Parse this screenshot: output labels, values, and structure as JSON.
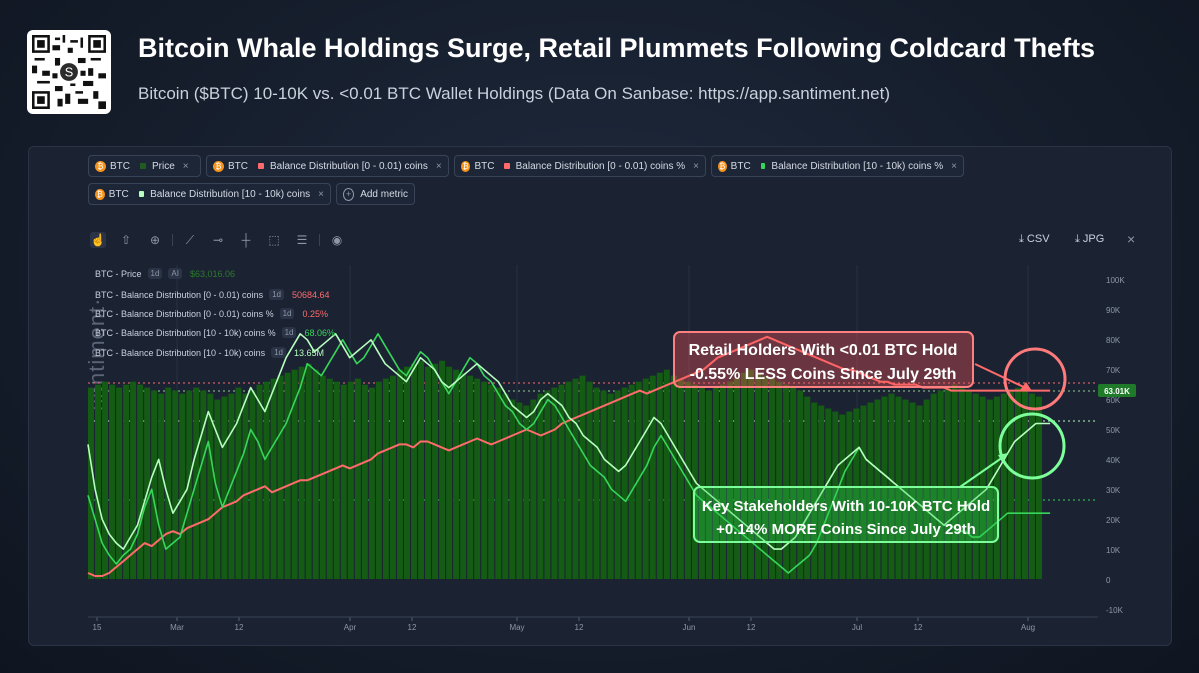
{
  "header": {
    "title": "Bitcoin Whale Holdings Surge, Retail Plummets Following Coldcard Thefts",
    "subtitle": "Bitcoin ($BTC) 10-10K vs. <0.01 BTC Wallet Holdings (Data On Sanbase: https://app.santiment.net)"
  },
  "brand": "·santiment·",
  "metric_chips": [
    {
      "asset": "BTC",
      "label": "Price",
      "color": "#1f5c1f"
    },
    {
      "asset": "BTC",
      "label": "Balance Distribution [0 - 0.01) coins",
      "color": "#ff6b6b"
    },
    {
      "asset": "BTC",
      "label": "Balance Distribution [0 - 0.01) coins %",
      "color": "#ff6b6b"
    },
    {
      "asset": "BTC",
      "label": "Balance Distribution [10 - 10k) coins %",
      "color": "#37d65a"
    },
    {
      "asset": "BTC",
      "label": "Balance Distribution [10 - 10k) coins",
      "color": "#b7ffbf"
    }
  ],
  "add_metric_label": "Add metric",
  "close_glyph": "×",
  "coin_glyph": "₿",
  "toolbar": {
    "icons": [
      "cursor-icon",
      "arrow-up-icon",
      "zoom-icon",
      "line-tool-icon",
      "horizontal-line-icon",
      "vertical-line-icon",
      "rectangle-icon",
      "fibonacci-icon",
      "eye-icon"
    ],
    "csv_label": "CSV",
    "jpg_label": "JPG"
  },
  "legend": [
    {
      "label": "BTC - Price",
      "tags": [
        "1d",
        "AI"
      ],
      "value": "$63,016.06",
      "value_color": "#2c7a2c"
    },
    {
      "label": "BTC - Balance Distribution [0 - 0.01) coins",
      "tags": [
        "1d"
      ],
      "value": "50684.64",
      "value_color": "#ff6b6b"
    },
    {
      "label": "BTC - Balance Distribution [0 - 0.01) coins %",
      "tags": [
        "1d"
      ],
      "value": "0.25%",
      "value_color": "#ff6b6b"
    },
    {
      "label": "BTC - Balance Distribution [10 - 10k) coins %",
      "tags": [
        "1d"
      ],
      "value": "68.06%",
      "value_color": "#37d65a"
    },
    {
      "label": "BTC - Balance Distribution [10 - 10k) coins",
      "tags": [
        "1d"
      ],
      "value": "13.65M",
      "value_color": "#b7ffbf"
    }
  ],
  "annotations": {
    "retail_line1": "Retail Holders With <0.01 BTC Hold",
    "retail_line2": "-0.55% LESS Coins Since July 29th",
    "whale_line1": "Key Stakeholders With 10-10K BTC Hold",
    "whale_line2": "+0.14% MORE Coins Since July 29th"
  },
  "chart_data": {
    "type": "line",
    "x_ticks": [
      "15",
      "Mar",
      "12",
      "Apr",
      "12",
      "May",
      "12",
      "Jun",
      "12",
      "Jul",
      "12",
      "Aug"
    ],
    "y_ticks": [
      "100K",
      "90K",
      "80K",
      "70K",
      "60K",
      "50K",
      "40K",
      "30K",
      "20K",
      "10K",
      "0",
      "-10K"
    ],
    "ylim": [
      -10000,
      100000
    ],
    "current_price_label": "63.01K",
    "colors": {
      "price": "#145c14",
      "retail": "#ff6b6b",
      "whale_pct": "#37d65a",
      "whale_coins": "#b7ffbf"
    },
    "series": [
      {
        "name": "BTC - Price",
        "kind": "bar",
        "values": [
          64,
          65,
          66,
          65,
          64,
          65,
          66,
          65,
          64,
          63,
          62,
          64,
          63,
          62,
          63,
          64,
          63,
          62,
          60,
          61,
          62,
          64,
          62,
          63,
          65,
          66,
          67,
          68,
          69,
          70,
          71,
          72,
          70,
          68,
          67,
          66,
          65,
          66,
          67,
          65,
          64,
          66,
          67,
          68,
          70,
          71,
          72,
          73,
          71,
          72,
          73,
          71,
          70,
          69,
          68,
          67,
          66,
          65,
          64,
          62,
          60,
          59,
          58,
          60,
          62,
          63,
          64,
          65,
          66,
          67,
          68,
          66,
          64,
          63,
          62,
          63,
          64,
          65,
          66,
          67,
          68,
          69,
          70,
          68,
          67,
          66,
          65,
          64,
          63,
          64,
          65,
          66,
          67,
          69,
          70,
          69,
          68,
          67,
          66,
          65,
          64,
          63,
          61,
          59,
          58,
          57,
          56,
          55,
          56,
          57,
          58,
          59,
          60,
          61,
          62,
          61,
          60,
          59,
          58,
          60,
          62,
          63,
          64,
          65,
          64,
          63,
          62,
          61,
          60,
          61,
          62,
          63,
          64,
          63,
          62,
          61
        ]
      },
      {
        "name": "BTC - Balance Distribution [0 - 0.01) coins",
        "kind": "line",
        "values": [
          2,
          1,
          1,
          2,
          4,
          6,
          8,
          10,
          12,
          11,
          13,
          15,
          16,
          15,
          17,
          18,
          19,
          20,
          22,
          24,
          25,
          26,
          28,
          29,
          30,
          31,
          29,
          30,
          31,
          32,
          33,
          33,
          34,
          35,
          36,
          37,
          38,
          37,
          38,
          39,
          40,
          42,
          43,
          44,
          45,
          45,
          44,
          46,
          46,
          45,
          44,
          43,
          44,
          45,
          46,
          47,
          46,
          45,
          46,
          47,
          48,
          49,
          50,
          49,
          48,
          49,
          50,
          52,
          53,
          54,
          55,
          56,
          57,
          58,
          59,
          60,
          61,
          62,
          63,
          62,
          63,
          64,
          65,
          66,
          67,
          68,
          69,
          70,
          72,
          74,
          75,
          76,
          77,
          78,
          79,
          80,
          81,
          80,
          79,
          78,
          77,
          76,
          75,
          74,
          73,
          72,
          71,
          70,
          70,
          69,
          68,
          67,
          66,
          66,
          65,
          65,
          65,
          65,
          64,
          64,
          64,
          64,
          63,
          63,
          63,
          63,
          63,
          63,
          63,
          63,
          63,
          63,
          63,
          63,
          63,
          63,
          63
        ]
      },
      {
        "name": "BTC - Balance Distribution [10 - 10k) coins %",
        "kind": "line",
        "values": [
          28,
          20,
          12,
          8,
          5,
          8,
          10,
          15,
          24,
          30,
          18,
          10,
          12,
          14,
          22,
          30,
          38,
          46,
          32,
          24,
          30,
          36,
          42,
          50,
          46,
          40,
          44,
          48,
          52,
          58,
          64,
          72,
          70,
          68,
          72,
          76,
          80,
          76,
          72,
          74,
          78,
          82,
          78,
          74,
          70,
          68,
          72,
          76,
          74,
          70,
          66,
          62,
          66,
          70,
          74,
          72,
          68,
          66,
          62,
          58,
          56,
          52,
          50,
          52,
          56,
          60,
          58,
          54,
          50,
          46,
          42,
          38,
          36,
          34,
          30,
          28,
          26,
          30,
          34,
          38,
          44,
          48,
          44,
          40,
          36,
          32,
          28,
          26,
          24,
          22,
          20,
          18,
          16,
          14,
          12,
          10,
          8,
          6,
          4,
          2,
          4,
          6,
          8,
          12,
          18,
          24,
          30,
          36,
          40,
          44,
          40,
          38,
          36,
          34,
          32,
          30,
          28,
          26,
          24,
          22,
          20,
          18,
          18,
          16,
          16,
          14,
          14,
          16,
          18,
          20,
          22,
          22,
          22,
          22,
          22,
          22,
          22
        ]
      },
      {
        "name": "BTC - Balance Distribution [10 - 10k) coins",
        "kind": "line",
        "values": [
          45,
          30,
          20,
          15,
          12,
          10,
          14,
          18,
          26,
          34,
          40,
          30,
          22,
          26,
          30,
          40,
          48,
          56,
          50,
          44,
          48,
          52,
          58,
          64,
          60,
          56,
          62,
          68,
          74,
          78,
          82,
          80,
          76,
          78,
          80,
          82,
          78,
          74,
          76,
          78,
          80,
          76,
          72,
          70,
          68,
          66,
          70,
          74,
          72,
          70,
          66,
          64,
          66,
          68,
          70,
          72,
          70,
          68,
          66,
          62,
          58,
          56,
          54,
          56,
          60,
          62,
          60,
          58,
          54,
          52,
          48,
          46,
          44,
          40,
          38,
          36,
          38,
          42,
          46,
          50,
          54,
          52,
          48,
          44,
          40,
          36,
          32,
          30,
          28,
          26,
          24,
          22,
          20,
          18,
          16,
          14,
          12,
          10,
          10,
          12,
          14,
          18,
          22,
          26,
          30,
          34,
          38,
          40,
          42,
          44,
          40,
          38,
          36,
          34,
          32,
          30,
          28,
          26,
          24,
          22,
          20,
          18,
          20,
          22,
          24,
          26,
          28,
          30,
          34,
          38,
          42,
          46,
          48,
          50,
          52,
          52,
          52
        ]
      }
    ]
  }
}
